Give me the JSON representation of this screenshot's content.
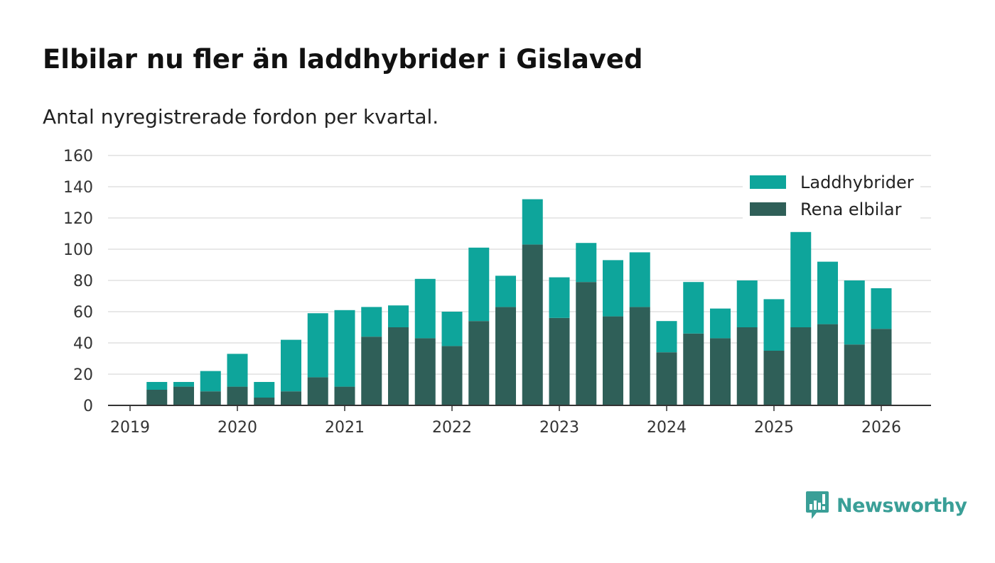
{
  "title": "Elbilar nu fler än laddhybrider i Gislaved",
  "subtitle": "Antal nyregistrerade fordon per kvartal.",
  "brand": {
    "name": "Newsworthy"
  },
  "colors": {
    "laddhybrider": "#0ea59b",
    "rena_elbilar": "#2f5f58",
    "grid": "#d9d9d9",
    "axis": "#333333",
    "brand": "#3a9f97"
  },
  "chart_data": {
    "type": "bar",
    "stacked": true,
    "title": "Elbilar nu fler än laddhybrider i Gislaved",
    "subtitle": "Antal nyregistrerade fordon per kvartal.",
    "xlabel": "",
    "ylabel": "",
    "ylim": [
      0,
      160
    ],
    "yticks": [
      0,
      20,
      40,
      60,
      80,
      100,
      120,
      140,
      160
    ],
    "xlim": [
      "2019-01-01",
      "2026-07-01"
    ],
    "xticks": [
      "2019",
      "2020",
      "2021",
      "2022",
      "2023",
      "2024",
      "2025",
      "2026"
    ],
    "grid": true,
    "legend_position": "top-right",
    "categories": [
      "2019 Q2",
      "2019 Q3",
      "2019 Q4",
      "2020 Q1",
      "2020 Q2",
      "2020 Q3",
      "2020 Q4",
      "2021 Q1",
      "2021 Q2",
      "2021 Q3",
      "2021 Q4",
      "2022 Q1",
      "2022 Q2",
      "2022 Q3",
      "2022 Q4",
      "2023 Q1",
      "2023 Q2",
      "2023 Q3",
      "2023 Q4",
      "2024 Q1",
      "2024 Q2",
      "2024 Q3",
      "2024 Q4",
      "2025 Q1",
      "2025 Q2",
      "2025 Q3",
      "2025 Q4",
      "2026 Q1"
    ],
    "series": [
      {
        "name": "Rena elbilar",
        "values": [
          10,
          12,
          9,
          12,
          5,
          9,
          18,
          12,
          44,
          50,
          43,
          38,
          54,
          63,
          103,
          56,
          79,
          57,
          63,
          34,
          46,
          43,
          50,
          35,
          50,
          52,
          39,
          49
        ]
      },
      {
        "name": "Laddhybrider",
        "values": [
          5,
          3,
          13,
          21,
          10,
          33,
          41,
          49,
          19,
          14,
          38,
          22,
          47,
          20,
          29,
          26,
          25,
          36,
          35,
          20,
          33,
          19,
          30,
          33,
          61,
          40,
          41,
          26
        ]
      }
    ],
    "legend": [
      "Laddhybrider",
      "Rena elbilar"
    ]
  }
}
